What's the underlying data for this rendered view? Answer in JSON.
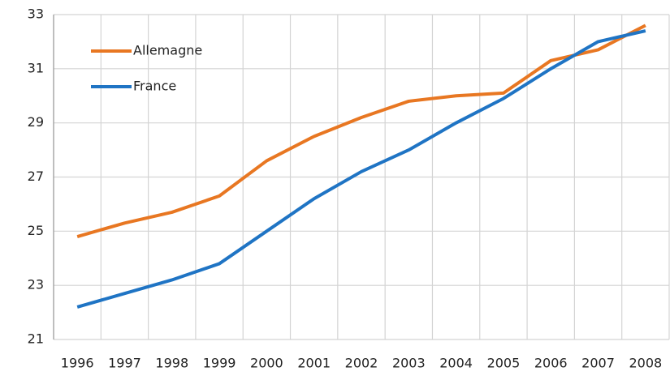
{
  "chart_data": {
    "type": "line",
    "categories": [
      "1996",
      "1997",
      "1998",
      "1999",
      "2000",
      "2001",
      "2002",
      "2003",
      "2004",
      "2005",
      "2006",
      "2007",
      "2008"
    ],
    "series": [
      {
        "name": "Allemagne",
        "color": "#e87722",
        "values": [
          24.8,
          25.3,
          25.7,
          26.3,
          27.6,
          28.5,
          29.2,
          29.8,
          30.0,
          30.1,
          31.3,
          31.7,
          32.6
        ]
      },
      {
        "name": "France",
        "color": "#1f74c4",
        "values": [
          22.2,
          22.7,
          23.2,
          23.8,
          25.0,
          26.2,
          27.2,
          28.0,
          29.0,
          29.9,
          31.0,
          32.0,
          32.4
        ]
      }
    ],
    "ylim": [
      21,
      33
    ],
    "yticks": [
      21,
      23,
      25,
      27,
      29,
      31,
      33
    ],
    "grid": true,
    "legend": "top-left"
  }
}
